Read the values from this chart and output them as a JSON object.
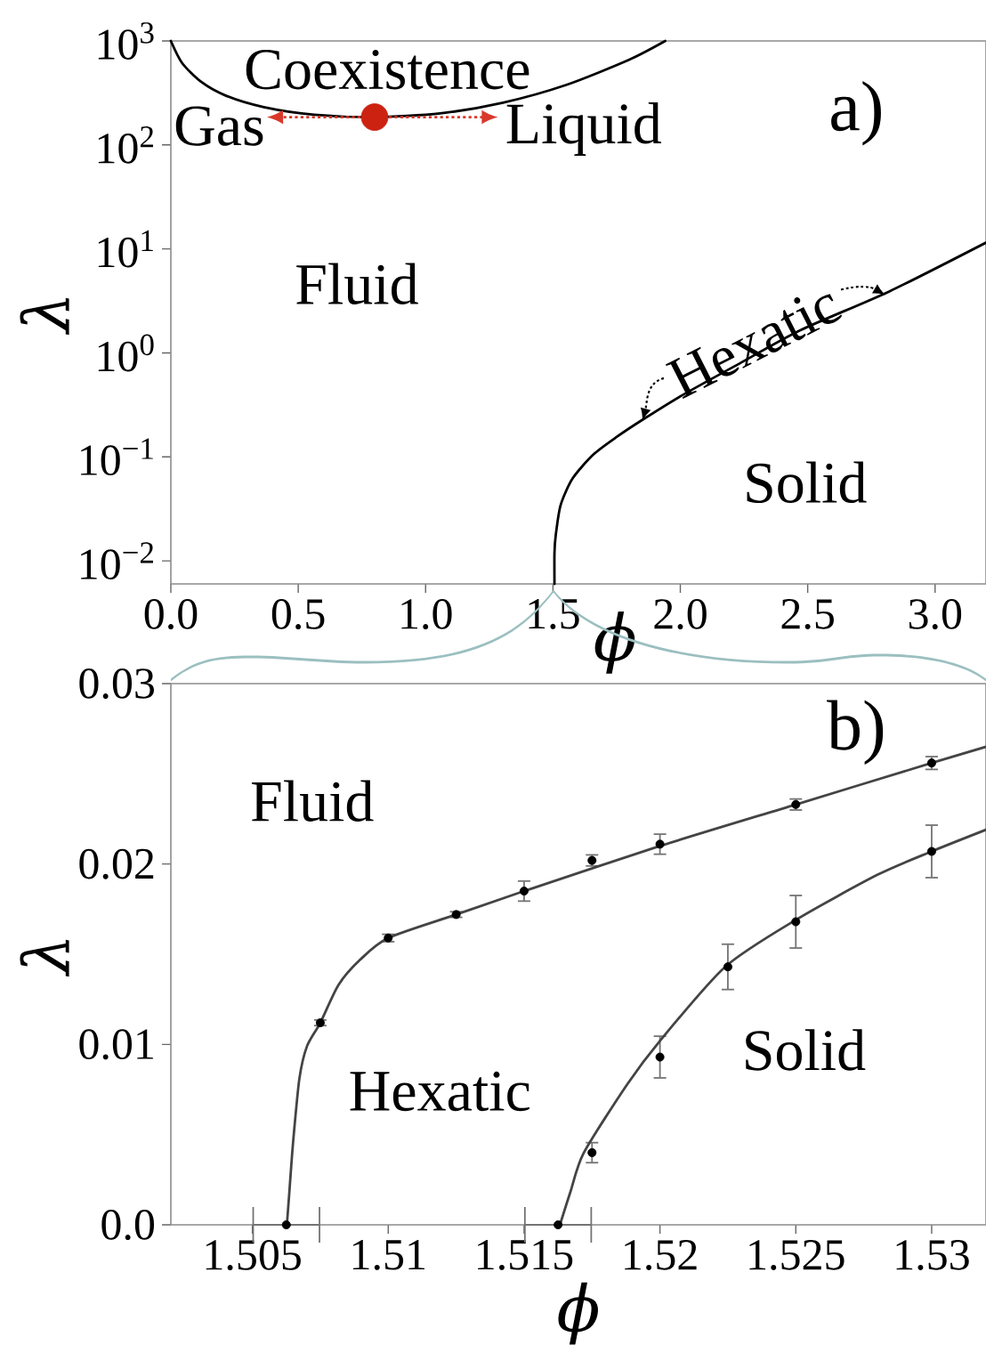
{
  "chart_data": [
    {
      "type": "line",
      "xlabel": "ϕ",
      "ylabel": "λ",
      "log": "y",
      "xlim": [
        0,
        3.2
      ],
      "ylim": [
        0.006,
        1000
      ],
      "xticks": [
        {
          "value": 0,
          "label": "0.0"
        },
        0.5,
        {
          "value": 1,
          "label": "1.0"
        },
        1.5,
        {
          "value": 2,
          "label": "2.0"
        },
        2.5,
        {
          "value": 3,
          "label": "3.0"
        }
      ],
      "yticks": [
        {
          "value": 0.01,
          "label": "10$^{−2}$"
        },
        {
          "value": 0.1,
          "label": "10$^{−1}$"
        },
        {
          "value": 1,
          "label": "10$^{0}$"
        },
        {
          "value": 10,
          "label": "10$^{1}$"
        },
        {
          "value": 100,
          "label": "10$^{2}$"
        },
        {
          "value": 1000,
          "label": "10$^{3}$"
        }
      ],
      "series": [
        {
          "color": "#000000",
          "marker": "none",
          "x": [
            0,
            0.044,
            0.119,
            0.217,
            0.365,
            0.563,
            0.8,
            1.057,
            1.304,
            1.551,
            1.798,
            1.941
          ],
          "values": [
            1000,
            614,
            404,
            297,
            231,
            195,
            185,
            201,
            255,
            377,
            658,
            1000
          ]
        },
        {
          "color": "#000000",
          "marker": "none",
          "x": [
            1.506,
            1.506,
            1.511,
            1.53,
            1.577,
            1.658,
            1.751,
            1.856,
            2.007,
            2.24,
            2.473,
            2.822,
            3.2
          ],
          "values": [
            0.006,
            0.012,
            0.0177,
            0.0343,
            0.0619,
            0.105,
            0.156,
            0.231,
            0.391,
            0.81,
            1.66,
            3.92,
            11.5
          ]
        },
        {
          "type": "scatter",
          "color": "#cc2211",
          "marker": "circle",
          "x": [
            0.8
          ],
          "values": [
            185
          ]
        }
      ],
      "annotations": [
        "Coexistence",
        "Gas",
        "Liquid",
        "Fluid",
        "Hexatic",
        "Solid",
        "a)"
      ]
    },
    {
      "type": "scatter",
      "xlabel": "ϕ",
      "ylabel": "λ",
      "xlim": [
        1.502,
        1.532
      ],
      "ylim": [
        0,
        0.03
      ],
      "xticks": [
        1.505,
        1.51,
        1.515,
        1.52,
        1.525,
        1.53
      ],
      "yticks": [
        {
          "value": 0,
          "label": "0.0"
        },
        0.01,
        0.02,
        0.03
      ],
      "series": [
        {
          "color": "#000000",
          "marker": "circle",
          "x": [
            1.50625,
            1.5075,
            1.51,
            1.5125,
            1.515,
            1.5175,
            1.52,
            1.525,
            1.53
          ],
          "values": [
            0,
            0.0112,
            0.0159,
            0.0172,
            0.0185,
            0.0202,
            0.0211,
            0.0233,
            0.0256
          ],
          "errors": [
            null,
            0.0002,
            0.00025,
            0.0002,
            0.0006,
            0.00035,
            0.0006,
            0.00035,
            0.0004
          ],
          "xerrors": [
            0.00125,
            null,
            null,
            null,
            null,
            null,
            null,
            null,
            null
          ]
        },
        {
          "type": "line",
          "color": "#444444",
          "marker": "none",
          "x": [
            1.50627,
            1.50636,
            1.5065,
            1.50673,
            1.50701,
            1.5075,
            1.50817,
            1.50897,
            1.51,
            1.5125,
            1.515,
            1.52,
            1.525,
            1.53,
            1.532
          ],
          "values": [
            0,
            0.0018,
            0.0046,
            0.0081,
            0.0099,
            0.0112,
            0.0133,
            0.0147,
            0.0159,
            0.0172,
            0.0185,
            0.021,
            0.0233,
            0.0256,
            0.0265
          ]
        },
        {
          "color": "#000000",
          "marker": "circle",
          "x": [
            1.51625,
            1.5175,
            1.52,
            1.5225,
            1.525,
            1.53
          ],
          "values": [
            0,
            0.004,
            0.0093,
            0.0143,
            0.0168,
            0.0207
          ],
          "errors": [
            null,
            0.0006,
            0.0012,
            0.0013,
            0.0015,
            0.0015
          ],
          "xerrors": [
            0.00125,
            null,
            null,
            null,
            null,
            null
          ]
        },
        {
          "type": "line",
          "color": "#444444",
          "marker": "none",
          "x": [
            1.51632,
            1.5167,
            1.5172,
            1.5188,
            1.52,
            1.5224,
            1.525,
            1.528,
            1.53,
            1.532
          ],
          "values": [
            0,
            0.0018,
            0.004,
            0.0078,
            0.0102,
            0.0143,
            0.0169,
            0.0194,
            0.0207,
            0.0219
          ]
        }
      ],
      "annotations": [
        "Fluid",
        "Hexatic",
        "Solid",
        "b)"
      ]
    }
  ]
}
